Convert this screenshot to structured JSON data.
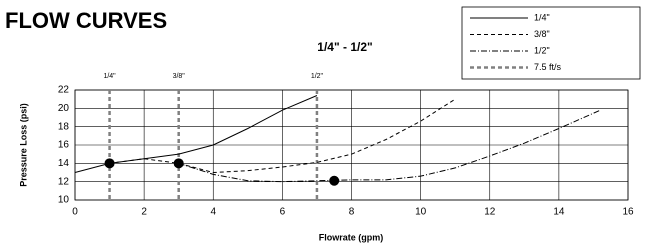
{
  "page_title": "FLOW CURVES",
  "chart_data": {
    "type": "line",
    "title": "1/4\" - 1/2\"",
    "x_label": "Flowrate (gpm)",
    "y_label": "Pressure Loss (psi)",
    "xlim": [
      0,
      16
    ],
    "xticks": [
      0,
      2,
      4,
      6,
      8,
      10,
      12,
      14,
      16
    ],
    "ylim": [
      10,
      22
    ],
    "yticks": [
      10,
      12,
      14,
      16,
      18,
      20,
      22
    ],
    "grid": true,
    "series": [
      {
        "name": "1/4\"",
        "color": "#000000",
        "dash": "solid",
        "x": [
          0,
          1,
          2,
          3,
          4,
          5,
          6,
          7
        ],
        "values": [
          13,
          14,
          14.5,
          15,
          16,
          17.8,
          19.8,
          21.4
        ]
      },
      {
        "name": "3/8\"",
        "color": "#000000",
        "dash": "dashed",
        "x": [
          1,
          2,
          3,
          4,
          5,
          6,
          7,
          8,
          9,
          10,
          11
        ],
        "values": [
          14,
          14.5,
          14,
          13,
          13.2,
          13.6,
          14.1,
          15,
          16.6,
          18.6,
          21
        ]
      },
      {
        "name": "1/2\"",
        "color": "#000000",
        "dash": "dashdot",
        "x": [
          3,
          4,
          5,
          6,
          7,
          8,
          9,
          10,
          11,
          12,
          13,
          14,
          15.2
        ],
        "values": [
          14,
          12.8,
          12.1,
          12,
          12.1,
          12.2,
          12.2,
          12.6,
          13.5,
          14.8,
          16.2,
          17.8,
          19.8
        ]
      }
    ],
    "markers": {
      "name": "7.5 ft/s",
      "color": "#808080",
      "x": [
        1,
        3,
        7
      ],
      "labels": [
        "1/4\"",
        "3/8\"",
        "1/2\""
      ]
    },
    "points": {
      "x": [
        1,
        3,
        7.5
      ],
      "values": [
        14,
        14,
        12.1
      ],
      "color": "#000000"
    }
  }
}
